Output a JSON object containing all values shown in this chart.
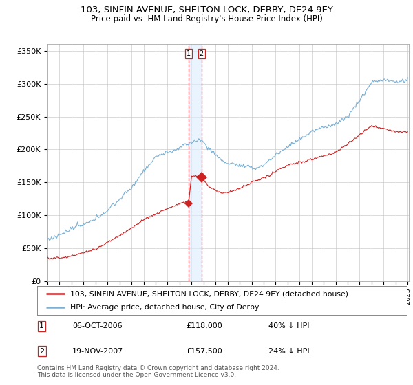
{
  "title": "103, SINFIN AVENUE, SHELTON LOCK, DERBY, DE24 9EY",
  "subtitle": "Price paid vs. HM Land Registry's House Price Index (HPI)",
  "legend_line1": "103, SINFIN AVENUE, SHELTON LOCK, DERBY, DE24 9EY (detached house)",
  "legend_line2": "HPI: Average price, detached house, City of Derby",
  "footer": "Contains HM Land Registry data © Crown copyright and database right 2024.\nThis data is licensed under the Open Government Licence v3.0.",
  "hpi_color": "#7ab0d4",
  "price_color": "#cc2222",
  "background_color": "#ffffff",
  "grid_color": "#cccccc",
  "ylim": [
    0,
    360000
  ],
  "yticks": [
    0,
    50000,
    100000,
    150000,
    200000,
    250000,
    300000,
    350000
  ],
  "ytick_labels": [
    "£0",
    "£50K",
    "£100K",
    "£150K",
    "£200K",
    "£250K",
    "£300K",
    "£350K"
  ],
  "transaction1_price": 118000,
  "transaction1_year": 2006.75,
  "transaction2_price": 157500,
  "transaction2_year": 2007.833
}
